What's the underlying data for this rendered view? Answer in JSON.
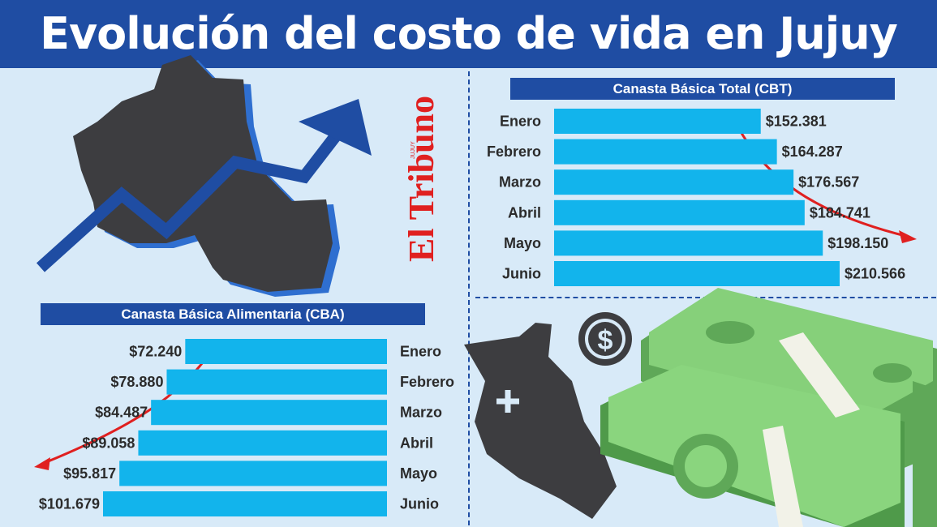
{
  "title": "Evolución del costo de vida en Jujuy",
  "brand": {
    "name": "El Tribuno",
    "sub": "JUJUY"
  },
  "colors": {
    "banner": "#1f4da3",
    "background": "#d8eaf8",
    "bar": "#12b4ec",
    "map": "#3d3d40",
    "arrow_up": "#1f4da3",
    "arrow_red": "#e02020",
    "brand": "#e02020",
    "money": "#7ec86e"
  },
  "icons": [
    "jujuy-map-icon",
    "rising-arrow-icon",
    "dollar-coin-icon",
    "money-stack-icon",
    "plus-icon"
  ],
  "chart_data": [
    {
      "type": "bar",
      "orientation": "horizontal",
      "title": "Canasta Básica Total (CBT)",
      "categories": [
        "Enero",
        "Febrero",
        "Marzo",
        "Abril",
        "Mayo",
        "Junio"
      ],
      "values": [
        152381,
        164287,
        176567,
        184741,
        198150,
        210566
      ],
      "value_labels": [
        "$152.381",
        "$164.287",
        "$176.567",
        "$184.741",
        "$198.150",
        "$210.566"
      ],
      "grid": false,
      "legend": "none"
    },
    {
      "type": "bar",
      "orientation": "horizontal",
      "title": "Canasta Básica Alimentaria (CBA)",
      "categories": [
        "Enero",
        "Febrero",
        "Marzo",
        "Abril",
        "Mayo",
        "Junio"
      ],
      "values": [
        72240,
        78880,
        84487,
        89058,
        95817,
        101679
      ],
      "value_labels": [
        "$72.240",
        "$78.880",
        "$84.487",
        "$89.058",
        "$95.817",
        "$101.679"
      ],
      "grid": false,
      "legend": "none"
    }
  ]
}
